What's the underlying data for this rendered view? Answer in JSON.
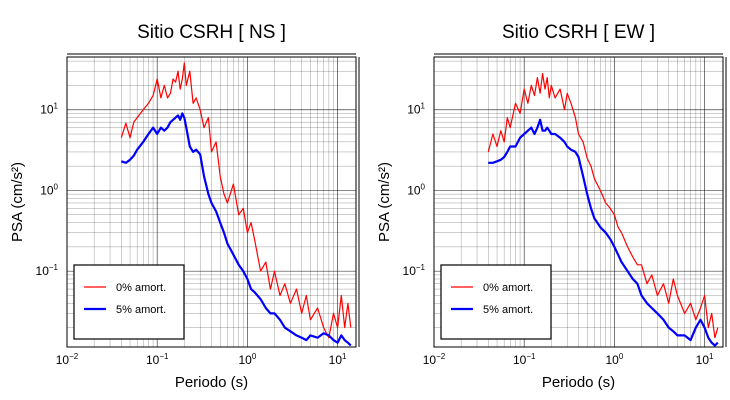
{
  "figure": {
    "background": "#ffffff"
  },
  "legend_labels": {
    "series_0": "0% amort.",
    "series_5": "5% amort."
  },
  "colors": {
    "series_0": "#ff0000",
    "series_5": "#0000ff",
    "grid": "#000000",
    "frame": "#000000"
  },
  "chart_data": [
    {
      "type": "line",
      "title": "Sitio CSRH [ NS ]",
      "xlabel": "Periodo (s)",
      "ylabel": "PSA (cm/s²)",
      "xscale": "log",
      "yscale": "log",
      "xlim": [
        0.01,
        16
      ],
      "ylim": [
        0.0115,
        45
      ],
      "x_ticks": [
        {
          "base": "10",
          "exp": "−2"
        },
        {
          "base": "10",
          "exp": "−1"
        },
        {
          "base": "10",
          "exp": "0"
        },
        {
          "base": "10",
          "exp": "1"
        }
      ],
      "y_ticks": [
        {
          "base": "10",
          "exp": "1"
        },
        {
          "base": "10",
          "exp": "0"
        },
        {
          "base": "10",
          "exp": "−1"
        }
      ],
      "grid": true,
      "legend_position": "bottom-left",
      "series": [
        {
          "name": "0% amort.",
          "x": [
            0.04,
            0.045,
            0.05,
            0.055,
            0.06,
            0.07,
            0.08,
            0.09,
            0.1,
            0.11,
            0.12,
            0.13,
            0.14,
            0.15,
            0.16,
            0.17,
            0.18,
            0.19,
            0.2,
            0.21,
            0.23,
            0.25,
            0.27,
            0.3,
            0.33,
            0.37,
            0.4,
            0.45,
            0.5,
            0.55,
            0.6,
            0.7,
            0.8,
            0.9,
            1.0,
            1.1,
            1.2,
            1.4,
            1.6,
            1.8,
            2.0,
            2.3,
            2.6,
            3.0,
            3.5,
            4.0,
            4.5,
            5.0,
            6.0,
            7.0,
            8.0,
            9.0,
            10.0,
            11.0,
            12.0,
            13.0,
            14.0
          ],
          "y": [
            4.5,
            6.8,
            4.5,
            7,
            8,
            10,
            12,
            15,
            24,
            14,
            20,
            14,
            16,
            24,
            22,
            30,
            18,
            24,
            38,
            20,
            30,
            12,
            14,
            10,
            6,
            8,
            3,
            4,
            1.5,
            0.9,
            0.7,
            1.2,
            0.5,
            0.6,
            0.3,
            0.4,
            0.25,
            0.1,
            0.13,
            0.06,
            0.1,
            0.05,
            0.07,
            0.04,
            0.06,
            0.03,
            0.05,
            0.025,
            0.035,
            0.02,
            0.015,
            0.03,
            0.02,
            0.05,
            0.02,
            0.04,
            0.02
          ]
        },
        {
          "name": "5% amort.",
          "x": [
            0.04,
            0.045,
            0.05,
            0.055,
            0.06,
            0.07,
            0.08,
            0.09,
            0.1,
            0.11,
            0.12,
            0.13,
            0.14,
            0.15,
            0.16,
            0.17,
            0.18,
            0.19,
            0.2,
            0.21,
            0.23,
            0.25,
            0.27,
            0.3,
            0.33,
            0.37,
            0.4,
            0.45,
            0.5,
            0.55,
            0.6,
            0.7,
            0.8,
            0.9,
            1.0,
            1.1,
            1.2,
            1.4,
            1.6,
            1.8,
            2.0,
            2.3,
            2.6,
            3.0,
            3.5,
            4.0,
            4.5,
            5.0,
            6.0,
            7.0,
            8.0,
            9.0,
            10.0,
            11.0,
            12.0,
            13.0,
            14.0
          ],
          "y": [
            2.3,
            2.2,
            2.4,
            2.7,
            3.2,
            4.0,
            5.0,
            6.0,
            5.0,
            6.0,
            5.5,
            6.0,
            7.0,
            7.5,
            8.0,
            8.5,
            7.5,
            9.0,
            8.0,
            6.0,
            3.5,
            3.0,
            3.2,
            2.8,
            1.5,
            0.9,
            0.7,
            0.55,
            0.4,
            0.3,
            0.22,
            0.16,
            0.12,
            0.1,
            0.08,
            0.06,
            0.055,
            0.045,
            0.035,
            0.03,
            0.03,
            0.025,
            0.02,
            0.018,
            0.016,
            0.015,
            0.014,
            0.016,
            0.015,
            0.017,
            0.016,
            0.014,
            0.013,
            0.016,
            0.014,
            0.013,
            0.012
          ]
        }
      ]
    },
    {
      "type": "line",
      "title": "Sitio CSRH [ EW ]",
      "xlabel": "Periodo (s)",
      "ylabel": "PSA (cm/s²)",
      "xscale": "log",
      "yscale": "log",
      "xlim": [
        0.01,
        16
      ],
      "ylim": [
        0.0115,
        45
      ],
      "x_ticks": [
        {
          "base": "10",
          "exp": "−2"
        },
        {
          "base": "10",
          "exp": "−1"
        },
        {
          "base": "10",
          "exp": "0"
        },
        {
          "base": "10",
          "exp": "1"
        }
      ],
      "y_ticks": [
        {
          "base": "10",
          "exp": "1"
        },
        {
          "base": "10",
          "exp": "0"
        },
        {
          "base": "10",
          "exp": "−1"
        }
      ],
      "grid": true,
      "legend_position": "bottom-left",
      "series": [
        {
          "name": "0% amort.",
          "x": [
            0.04,
            0.045,
            0.05,
            0.055,
            0.06,
            0.065,
            0.07,
            0.08,
            0.09,
            0.1,
            0.11,
            0.12,
            0.13,
            0.14,
            0.15,
            0.16,
            0.17,
            0.18,
            0.19,
            0.2,
            0.22,
            0.25,
            0.28,
            0.3,
            0.33,
            0.37,
            0.4,
            0.45,
            0.5,
            0.55,
            0.6,
            0.7,
            0.8,
            0.9,
            1.0,
            1.1,
            1.2,
            1.4,
            1.6,
            1.8,
            2.0,
            2.3,
            2.6,
            3.0,
            3.5,
            4.0,
            4.5,
            5.0,
            6.0,
            7.0,
            8.0,
            9.0,
            10.0,
            11.0,
            12.0,
            13.0,
            14.0
          ],
          "y": [
            3.0,
            5.0,
            3.5,
            5.5,
            4.0,
            8.0,
            6.0,
            12.0,
            9.0,
            18.0,
            12.0,
            20.0,
            15.0,
            25.0,
            16.0,
            28.0,
            18.0,
            25.0,
            14.0,
            20.0,
            14.0,
            18.0,
            10.0,
            16.0,
            12.0,
            8.0,
            5.0,
            4.0,
            2.5,
            2.0,
            1.4,
            1.0,
            0.7,
            0.6,
            0.5,
            0.35,
            0.3,
            0.2,
            0.15,
            0.12,
            0.12,
            0.07,
            0.09,
            0.05,
            0.07,
            0.04,
            0.08,
            0.05,
            0.03,
            0.04,
            0.025,
            0.035,
            0.05,
            0.02,
            0.03,
            0.015,
            0.02
          ]
        },
        {
          "name": "5% amort.",
          "x": [
            0.04,
            0.045,
            0.05,
            0.055,
            0.06,
            0.065,
            0.07,
            0.08,
            0.09,
            0.1,
            0.11,
            0.12,
            0.13,
            0.14,
            0.15,
            0.16,
            0.17,
            0.18,
            0.19,
            0.2,
            0.22,
            0.25,
            0.28,
            0.3,
            0.33,
            0.37,
            0.4,
            0.45,
            0.5,
            0.55,
            0.6,
            0.7,
            0.8,
            0.9,
            1.0,
            1.1,
            1.2,
            1.4,
            1.6,
            1.8,
            2.0,
            2.3,
            2.6,
            3.0,
            3.5,
            4.0,
            4.5,
            5.0,
            6.0,
            7.0,
            8.0,
            9.0,
            10.0,
            11.0,
            12.0,
            13.0,
            14.0
          ],
          "y": [
            2.2,
            2.2,
            2.3,
            2.4,
            2.6,
            3.0,
            3.5,
            3.5,
            4.5,
            5.0,
            5.5,
            6.0,
            5.0,
            6.0,
            7.5,
            5.5,
            5.5,
            6.0,
            5.5,
            5.0,
            5.0,
            4.5,
            4.0,
            3.5,
            3.2,
            3.0,
            2.6,
            1.5,
            0.9,
            0.6,
            0.45,
            0.35,
            0.3,
            0.25,
            0.2,
            0.16,
            0.13,
            0.1,
            0.08,
            0.07,
            0.05,
            0.04,
            0.035,
            0.03,
            0.025,
            0.02,
            0.018,
            0.016,
            0.016,
            0.014,
            0.02,
            0.025,
            0.02,
            0.015,
            0.013,
            0.012,
            0.013
          ]
        }
      ]
    }
  ]
}
